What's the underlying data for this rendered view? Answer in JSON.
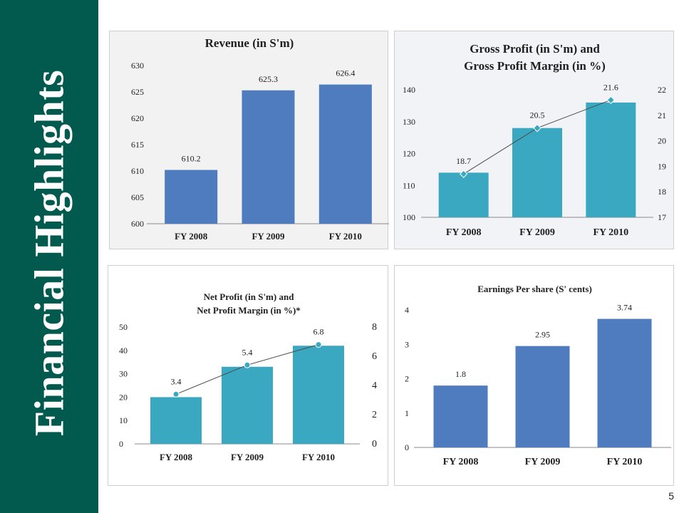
{
  "sidebar": {
    "title": "Financial Highlights"
  },
  "page_number": "5",
  "colors": {
    "sidebar": "#025a4f",
    "bar_blue": "#4f7bbf",
    "bar_teal": "#3aa8c1",
    "line": "#4a4a4a"
  },
  "chart_data": [
    {
      "type": "bar",
      "title": "Revenue (in S'm)",
      "categories": [
        "FY 2008",
        "FY 2009",
        "FY 2010"
      ],
      "values": [
        610.2,
        625.3,
        626.4
      ],
      "data_labels": [
        "610.2",
        "625.3",
        "626.4"
      ],
      "ylim": [
        600,
        630
      ],
      "yticks": [
        600,
        605,
        610,
        615,
        620,
        625,
        630
      ],
      "bar_color": "#4f7bbf",
      "grid": false
    },
    {
      "type": "bar",
      "title": "Gross Profit (in S'm) and Gross Profit Margin (in %)",
      "categories": [
        "FY 2008",
        "FY 2009",
        "FY 2010"
      ],
      "series": [
        {
          "type": "bar",
          "values": [
            114,
            128,
            136
          ],
          "axis": "left"
        },
        {
          "type": "line",
          "values": [
            18.7,
            20.5,
            21.6
          ],
          "axis": "right"
        }
      ],
      "data_labels": [
        "18.7",
        "20.5",
        "21.6"
      ],
      "ylim": [
        100,
        140
      ],
      "yticks": [
        100,
        110,
        120,
        130,
        140
      ],
      "y2lim": [
        17,
        22
      ],
      "y2ticks": [
        17,
        18,
        19,
        20,
        21,
        22
      ],
      "bar_color": "#3aa8c1",
      "marker": "diamond",
      "grid": false
    },
    {
      "type": "bar",
      "title": "Net Profit (in S'm) and Net Profit Margin (in %)*",
      "categories": [
        "FY 2008",
        "FY 2009",
        "FY 2010"
      ],
      "series": [
        {
          "type": "bar",
          "values": [
            20,
            33,
            42
          ],
          "axis": "left"
        },
        {
          "type": "line",
          "values": [
            3.4,
            5.4,
            6.8
          ],
          "axis": "right"
        }
      ],
      "data_labels": [
        "3.4",
        "5.4",
        "6.8"
      ],
      "ylim": [
        0,
        50
      ],
      "yticks": [
        0,
        10,
        20,
        30,
        40,
        50
      ],
      "y2lim": [
        0,
        8
      ],
      "y2ticks": [
        0,
        2,
        4,
        6,
        8
      ],
      "bar_color": "#3aa8c1",
      "marker": "circle",
      "grid": false
    },
    {
      "type": "bar",
      "title": "Earnings Per share (S' cents)",
      "categories": [
        "FY 2008",
        "FY 2009",
        "FY 2010"
      ],
      "values": [
        1.8,
        2.95,
        3.74
      ],
      "data_labels": [
        "1.8",
        "2.95",
        "3.74"
      ],
      "ylim": [
        0,
        4
      ],
      "yticks": [
        0,
        1,
        2,
        3,
        4
      ],
      "bar_color": "#4f7bbf",
      "grid": false
    }
  ]
}
